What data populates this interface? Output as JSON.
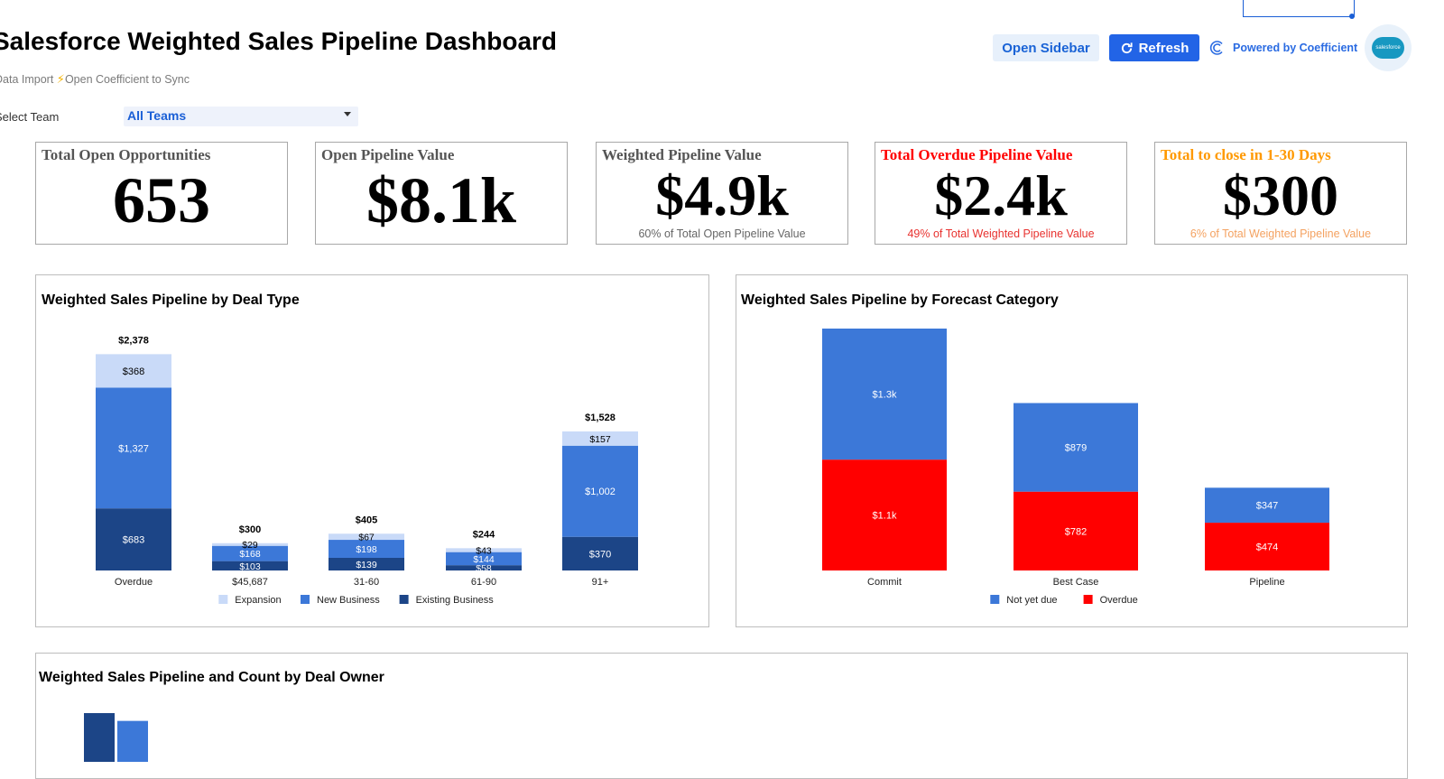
{
  "header": {
    "title": "Salesforce Weighted Sales Pipeline Dashboard",
    "subtitle_prefix": "Data Import",
    "subtitle_sync": "Open Coefficient to Sync",
    "select_team_label": "Select Team",
    "team_value": "All Teams",
    "open_sidebar": "Open Sidebar",
    "refresh": "Refresh",
    "powered_by": "Powered by Coefficient",
    "salesforce_logo_text": "salesforce"
  },
  "kpis": [
    {
      "label": "Total Open Opportunities",
      "value": "653",
      "sub": "",
      "color": "#555555",
      "sub_color": "#666666"
    },
    {
      "label": "Open Pipeline Value",
      "value": "$8.1k",
      "sub": "",
      "color": "#555555",
      "sub_color": "#666666"
    },
    {
      "label": "Weighted Pipeline Value",
      "value": "$4.9k",
      "sub": "60%  of Total Open Pipeline Value",
      "color": "#555555",
      "sub_color": "#666666"
    },
    {
      "label": "Total Overdue Pipeline Value",
      "value": "$2.4k",
      "sub": "49%  of Total Weighted Pipeline Value",
      "color": "#ff0000",
      "sub_color": "#e8322f"
    },
    {
      "label": "Total to close in 1-30 Days",
      "value": "$300",
      "sub": "6%  of Total Weighted Pipeline Value",
      "color": "#ff9900",
      "sub_color": "#f4a261"
    }
  ],
  "colors": {
    "expansion": "#c9daf8",
    "new_business": "#3c78d8",
    "existing_business": "#1c4587",
    "not_yet_due": "#3c78d8",
    "overdue": "#ff0000"
  },
  "chart_data": [
    {
      "type": "bar",
      "stacked": true,
      "title": "Weighted Sales Pipeline by Deal Type",
      "categories": [
        "Overdue",
        "$45,687",
        "31-60",
        "61-90",
        "91+"
      ],
      "totals": [
        "$2,378",
        "$300",
        "$405",
        "$244",
        "$1,528"
      ],
      "series": [
        {
          "name": "Existing Business",
          "values": [
            683,
            103,
            139,
            58,
            370
          ],
          "labels": [
            "$683",
            "$103",
            "$139",
            "$58",
            "$370"
          ]
        },
        {
          "name": "New Business",
          "values": [
            1327,
            168,
            198,
            144,
            1002
          ],
          "labels": [
            "$1,327",
            "$168",
            "$198",
            "$144",
            "$1,002"
          ]
        },
        {
          "name": "Expansion",
          "values": [
            368,
            29,
            67,
            43,
            157
          ],
          "labels": [
            "$368",
            "$29",
            "$67",
            "$43",
            "$157"
          ]
        }
      ],
      "legend": [
        "Expansion",
        "New Business",
        "Existing Business"
      ],
      "legend_position": "bottom",
      "ylim": [
        0,
        2600
      ]
    },
    {
      "type": "bar",
      "stacked": true,
      "title": "Weighted Sales Pipeline by Forecast Category",
      "categories": [
        "Commit",
        "Best Case",
        "Pipeline"
      ],
      "series": [
        {
          "name": "Overdue",
          "values": [
            1100,
            782,
            474
          ],
          "labels": [
            "$1.1k",
            "$782",
            "$474"
          ]
        },
        {
          "name": "Not yet due",
          "values": [
            1300,
            879,
            347
          ],
          "labels": [
            "$1.3k",
            "$879",
            "$347"
          ]
        }
      ],
      "legend": [
        "Not yet due",
        "Overdue"
      ],
      "legend_position": "bottom",
      "ylim": [
        0,
        2400
      ]
    },
    {
      "type": "bar",
      "title": "Weighted Sales Pipeline and Count by Deal Owner",
      "categories": [
        ""
      ],
      "series": [
        {
          "values": [
            1
          ]
        },
        {
          "values": [
            0.84
          ]
        }
      ]
    }
  ]
}
